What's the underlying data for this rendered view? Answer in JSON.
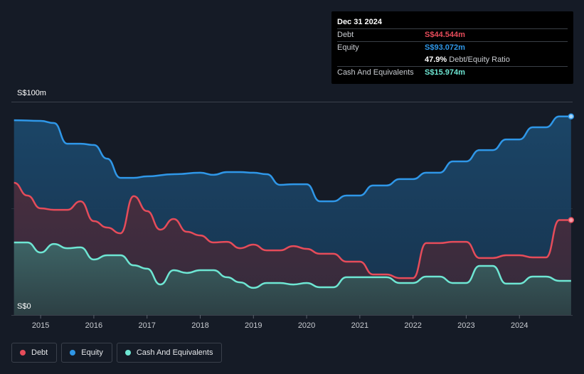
{
  "tooltip": {
    "date": "Dec 31 2024",
    "rows": [
      {
        "label": "Debt",
        "value": "S$44.544m"
      },
      {
        "label": "Equity",
        "value": "S$93.072m"
      },
      {
        "label": "",
        "value": "47.9%",
        "sub": "Debt/Equity Ratio"
      },
      {
        "label": "Cash And Equivalents",
        "value": "S$15.974m"
      }
    ]
  },
  "legend": [
    {
      "label": "Debt",
      "color": "#e64c5a"
    },
    {
      "label": "Equity",
      "color": "#2f97e8"
    },
    {
      "label": "Cash And Equivalents",
      "color": "#6ee6d3"
    }
  ],
  "chart_data": {
    "type": "area",
    "ylim": [
      0,
      100
    ],
    "y_tick_labels": [
      "S$0",
      "S$100m"
    ],
    "x_ticks": [
      {
        "x": 2015,
        "label": "2015"
      },
      {
        "x": 2016,
        "label": "2016"
      },
      {
        "x": 2017,
        "label": "2017"
      },
      {
        "x": 2018,
        "label": "2018"
      },
      {
        "x": 2019,
        "label": "2019"
      },
      {
        "x": 2020,
        "label": "2020"
      },
      {
        "x": 2021,
        "label": "2021"
      },
      {
        "x": 2022,
        "label": "2022"
      },
      {
        "x": 2023,
        "label": "2023"
      },
      {
        "x": 2024,
        "label": "2024"
      }
    ],
    "xlim": [
      2014.45,
      2025.0
    ],
    "series": [
      {
        "name": "Equity",
        "color": "#2f97e8",
        "points": [
          [
            2014.5,
            91.3
          ],
          [
            2015.0,
            91.0
          ],
          [
            2015.25,
            90.0
          ],
          [
            2015.5,
            80.3
          ],
          [
            2015.75,
            80.3
          ],
          [
            2016.0,
            79.7
          ],
          [
            2016.25,
            73.3
          ],
          [
            2016.5,
            64.3
          ],
          [
            2016.75,
            64.3
          ],
          [
            2017.0,
            65.0
          ],
          [
            2017.5,
            66.0
          ],
          [
            2018.0,
            66.7
          ],
          [
            2018.25,
            65.7
          ],
          [
            2018.5,
            67.0
          ],
          [
            2018.75,
            67.0
          ],
          [
            2019.0,
            66.7
          ],
          [
            2019.25,
            66.0
          ],
          [
            2019.5,
            61.0
          ],
          [
            2019.75,
            61.3
          ],
          [
            2020.0,
            61.3
          ],
          [
            2020.25,
            53.3
          ],
          [
            2020.5,
            53.3
          ],
          [
            2020.75,
            56.0
          ],
          [
            2021.0,
            56.0
          ],
          [
            2021.25,
            60.7
          ],
          [
            2021.5,
            60.7
          ],
          [
            2021.75,
            63.7
          ],
          [
            2022.0,
            63.7
          ],
          [
            2022.25,
            66.7
          ],
          [
            2022.5,
            66.7
          ],
          [
            2022.75,
            72.0
          ],
          [
            2023.0,
            72.0
          ],
          [
            2023.25,
            77.3
          ],
          [
            2023.5,
            77.3
          ],
          [
            2023.75,
            82.3
          ],
          [
            2024.0,
            82.3
          ],
          [
            2024.25,
            88.0
          ],
          [
            2024.5,
            88.0
          ],
          [
            2024.75,
            93.1
          ],
          [
            2024.97,
            93.1
          ]
        ]
      },
      {
        "name": "Debt",
        "color": "#e64c5a",
        "points": [
          [
            2014.5,
            62.0
          ],
          [
            2014.75,
            56.0
          ],
          [
            2015.0,
            50.0
          ],
          [
            2015.25,
            49.3
          ],
          [
            2015.5,
            49.3
          ],
          [
            2015.75,
            53.3
          ],
          [
            2016.0,
            44.0
          ],
          [
            2016.25,
            41.0
          ],
          [
            2016.5,
            38.3
          ],
          [
            2016.75,
            55.7
          ],
          [
            2017.0,
            48.7
          ],
          [
            2017.25,
            40.0
          ],
          [
            2017.5,
            45.0
          ],
          [
            2017.75,
            39.0
          ],
          [
            2018.0,
            37.3
          ],
          [
            2018.25,
            34.0
          ],
          [
            2018.5,
            34.3
          ],
          [
            2018.75,
            31.3
          ],
          [
            2019.0,
            33.0
          ],
          [
            2019.25,
            30.3
          ],
          [
            2019.5,
            30.3
          ],
          [
            2019.75,
            32.3
          ],
          [
            2020.0,
            31.0
          ],
          [
            2020.25,
            28.7
          ],
          [
            2020.5,
            28.7
          ],
          [
            2020.75,
            25.0
          ],
          [
            2021.0,
            25.0
          ],
          [
            2021.25,
            19.0
          ],
          [
            2021.5,
            19.0
          ],
          [
            2021.75,
            17.3
          ],
          [
            2022.0,
            17.3
          ],
          [
            2022.25,
            33.7
          ],
          [
            2022.5,
            33.7
          ],
          [
            2022.75,
            34.3
          ],
          [
            2023.0,
            34.3
          ],
          [
            2023.25,
            26.7
          ],
          [
            2023.5,
            26.7
          ],
          [
            2023.75,
            28.0
          ],
          [
            2024.0,
            28.0
          ],
          [
            2024.25,
            27.0
          ],
          [
            2024.5,
            27.0
          ],
          [
            2024.75,
            44.5
          ],
          [
            2024.97,
            44.5
          ]
        ]
      },
      {
        "name": "Cash And Equivalents",
        "color": "#6ee6d3",
        "points": [
          [
            2014.5,
            34.0
          ],
          [
            2014.75,
            34.0
          ],
          [
            2015.0,
            29.3
          ],
          [
            2015.25,
            33.3
          ],
          [
            2015.5,
            31.3
          ],
          [
            2015.75,
            31.7
          ],
          [
            2016.0,
            26.0
          ],
          [
            2016.25,
            28.0
          ],
          [
            2016.5,
            28.0
          ],
          [
            2016.75,
            23.3
          ],
          [
            2017.0,
            21.7
          ],
          [
            2017.25,
            14.3
          ],
          [
            2017.5,
            21.0
          ],
          [
            2017.75,
            19.7
          ],
          [
            2018.0,
            21.0
          ],
          [
            2018.25,
            21.0
          ],
          [
            2018.5,
            17.7
          ],
          [
            2018.75,
            15.3
          ],
          [
            2019.0,
            12.7
          ],
          [
            2019.25,
            15.0
          ],
          [
            2019.5,
            15.0
          ],
          [
            2019.75,
            14.3
          ],
          [
            2020.0,
            15.0
          ],
          [
            2020.25,
            13.0
          ],
          [
            2020.5,
            13.0
          ],
          [
            2020.75,
            17.7
          ],
          [
            2021.0,
            17.7
          ],
          [
            2021.25,
            17.7
          ],
          [
            2021.5,
            17.7
          ],
          [
            2021.75,
            15.0
          ],
          [
            2022.0,
            15.0
          ],
          [
            2022.25,
            18.0
          ],
          [
            2022.5,
            18.0
          ],
          [
            2022.75,
            15.0
          ],
          [
            2023.0,
            15.0
          ],
          [
            2023.25,
            23.0
          ],
          [
            2023.5,
            23.0
          ],
          [
            2023.75,
            14.7
          ],
          [
            2024.0,
            14.7
          ],
          [
            2024.25,
            18.0
          ],
          [
            2024.5,
            18.0
          ],
          [
            2024.75,
            16.0
          ],
          [
            2024.97,
            16.0
          ]
        ]
      }
    ]
  }
}
